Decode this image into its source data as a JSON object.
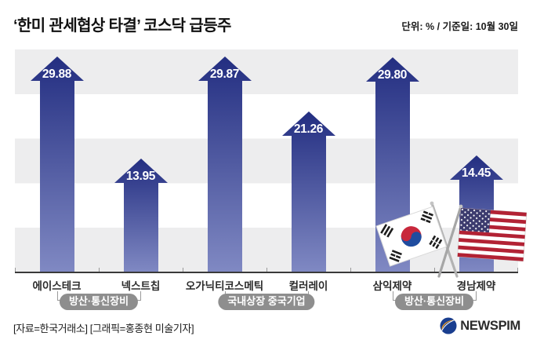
{
  "header": {
    "title": "‘한미 관세협상 타결’ 코스닥 급등주",
    "unit_note": "단위: % / 기준일: 10월 30일"
  },
  "chart_data": {
    "type": "bar",
    "style": "up-arrow-bars",
    "unit": "%",
    "base_date": "10월 30일",
    "categories": [
      "에이스테크",
      "넥스트칩",
      "오가닉티코스메틱",
      "컬러레이",
      "삼익제약",
      "경남제약"
    ],
    "values": [
      29.88,
      13.95,
      29.87,
      21.26,
      29.8,
      14.45
    ],
    "value_labels": [
      "29.88",
      "13.95",
      "29.87",
      "21.26",
      "29.80",
      "14.45"
    ],
    "groups": [
      {
        "label": "방산·통신장비",
        "from": 0,
        "to": 1
      },
      {
        "label": "국내상장 중국기업",
        "from": 2,
        "to": 3
      },
      {
        "label": "방산·통신장비",
        "from": 4,
        "to": 5
      }
    ],
    "ylim": [
      0,
      31
    ],
    "gridlines": "alternating horizontal bands",
    "legend": "none",
    "palette": {
      "bar_top": "#232E81",
      "bar_bottom": "#8089C3",
      "value_text": "#FFFFFF",
      "stripe": "#EDEDEE",
      "axis": "#3A3A3A",
      "tick": "#999999",
      "badge_bg": "#8E8E8E",
      "badge_text": "#FFFFFF",
      "label_text": "#2B2B2B"
    }
  },
  "decor": {
    "flags": [
      "korea-flag",
      "usa-flag"
    ]
  },
  "footer": {
    "source": "[자료=한국거래소] [그래픽=홍종현 미술기자]",
    "logo_text": "NEWSPIM"
  }
}
